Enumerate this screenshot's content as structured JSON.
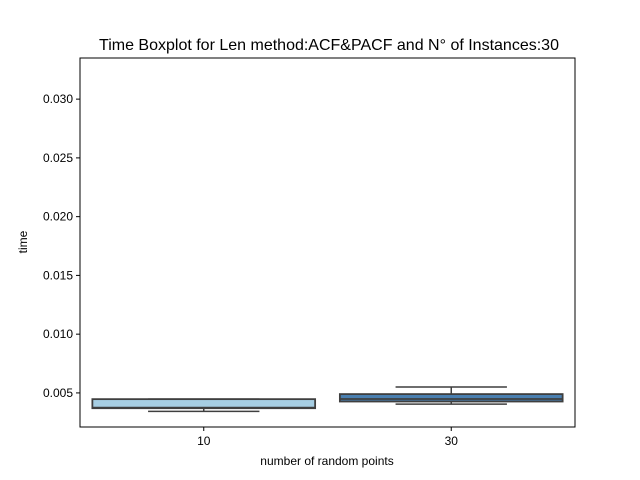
{
  "chart_data": {
    "type": "box",
    "title": "Time Boxplot for Len method:ACF&PACF and N° of Instances:30",
    "xlabel": "number of random points",
    "ylabel": "time",
    "categories": [
      "10",
      "30"
    ],
    "ylim": [
      0.0021,
      0.0335
    ],
    "yticks": [
      0.005,
      0.01,
      0.015,
      0.02,
      0.025,
      0.03
    ],
    "ytick_labels": [
      "0.005",
      "0.010",
      "0.015",
      "0.020",
      "0.025",
      "0.030"
    ],
    "boxes": [
      {
        "category": "10",
        "whisker_low": 0.00343,
        "q1": 0.0037,
        "median": 0.00375,
        "q3": 0.00447,
        "whisker_high": 0.00447,
        "color": "#a6cee3"
      },
      {
        "category": "30",
        "whisker_low": 0.00405,
        "q1": 0.00427,
        "median": 0.00448,
        "q3": 0.0049,
        "whisker_high": 0.0055,
        "color": "#4a7fb0"
      }
    ],
    "grid": false,
    "legend": "none"
  }
}
